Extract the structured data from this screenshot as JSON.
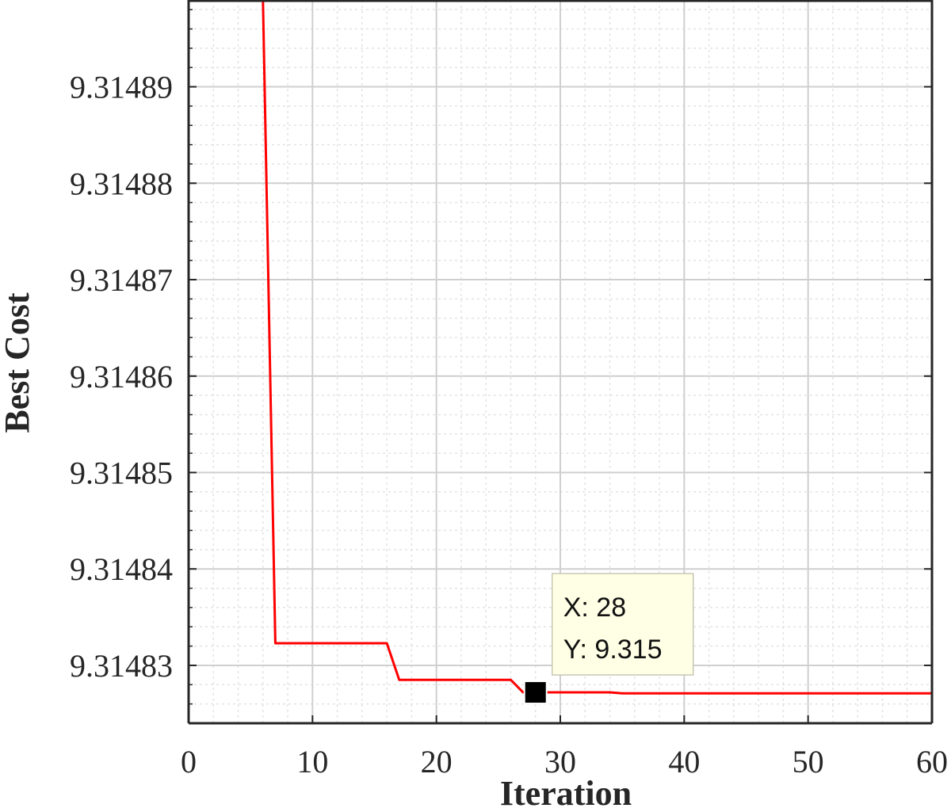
{
  "chart_data": {
    "type": "line",
    "xlabel": "Iteration",
    "ylabel": "Best Cost",
    "xlim": [
      0,
      60
    ],
    "ylim": [
      9.314824,
      9.314899
    ],
    "xticks": [
      0,
      10,
      20,
      30,
      40,
      50,
      60
    ],
    "xtick_labels": [
      "0",
      "10",
      "20",
      "30",
      "40",
      "50",
      "60"
    ],
    "yticks": [
      9.31483,
      9.31484,
      9.31485,
      9.31486,
      9.31487,
      9.31488,
      9.31489
    ],
    "ytick_labels": [
      "9.31483",
      "9.31484",
      "9.31485",
      "9.31486",
      "9.31487",
      "9.31488",
      "9.31489"
    ],
    "grid": true,
    "minor_grid": true,
    "series": [
      {
        "color": "#ff0000",
        "x": [
          1,
          6,
          7,
          16,
          17,
          26,
          27,
          34,
          35,
          60
        ],
        "y": [
          9.314899,
          9.314899,
          9.3148323,
          9.3148323,
          9.3148285,
          9.3148285,
          9.3148272,
          9.3148272,
          9.3148271,
          9.3148271
        ]
      }
    ],
    "datatip": {
      "x": 28,
      "y": 9.3148272,
      "x_text": "X: 28",
      "y_text": "Y: 9.315"
    }
  }
}
